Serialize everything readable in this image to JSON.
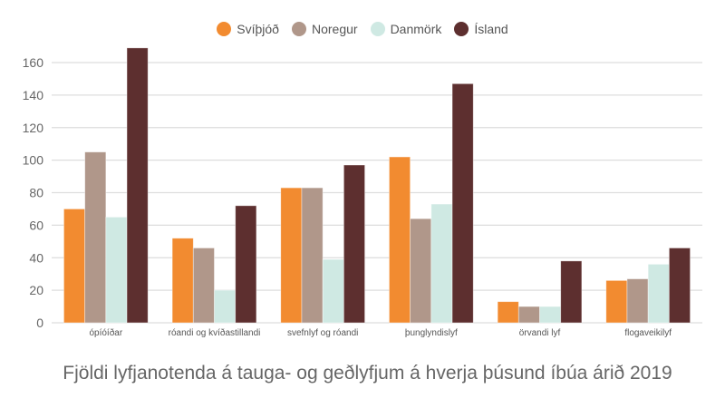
{
  "chart_data": {
    "type": "bar",
    "title": "Fjöldi lyfjanotenda á tauga- og geðlyfjum á hverja þúsund íbúa árið 2019",
    "xlabel": "",
    "ylabel": "",
    "ylim": [
      0,
      160
    ],
    "yticks": [
      0,
      20,
      40,
      60,
      80,
      100,
      120,
      140,
      160
    ],
    "grid": true,
    "legend_position": "top",
    "categories": [
      "ópíóíðar",
      "róandi og kvíðastillandi",
      "svefnlyf og róandi",
      "þunglyndislyf",
      "örvandi lyf",
      "flogaveikilyf"
    ],
    "series": [
      {
        "name": "Svíþjóð",
        "color": "#f28b30",
        "values": [
          70,
          52,
          83,
          102,
          13,
          26
        ]
      },
      {
        "name": "Noregur",
        "color": "#b0978a",
        "values": [
          105,
          46,
          83,
          64,
          10,
          27
        ]
      },
      {
        "name": "Danmörk",
        "color": "#cfe9e3",
        "values": [
          65,
          20,
          39,
          73,
          10,
          36
        ]
      },
      {
        "name": "Ísland",
        "color": "#5d2f2f",
        "values": [
          169,
          72,
          97,
          147,
          38,
          46
        ]
      }
    ]
  }
}
